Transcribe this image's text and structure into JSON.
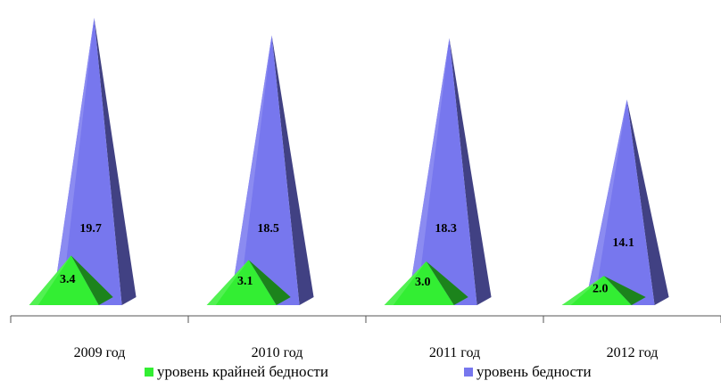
{
  "chart_data": {
    "type": "bar",
    "shape": "pyramid",
    "categories": [
      "2009 год",
      "2010 год",
      "2011 год",
      "2012 год"
    ],
    "series": [
      {
        "name": "уровень крайней бедности",
        "values": [
          3.4,
          3.1,
          3.0,
          2.0
        ],
        "color": "#33ee33",
        "labels": [
          "3.4",
          "3.1",
          "3.0",
          "2.0"
        ]
      },
      {
        "name": "уровень бедности",
        "values": [
          19.7,
          18.5,
          18.3,
          14.1
        ],
        "color": "#7777ee",
        "labels": [
          "19.7",
          "18.5",
          "18.3",
          "14.1"
        ]
      }
    ],
    "ylim": [
      0,
      20
    ],
    "legend": "bottom",
    "grid": false
  }
}
